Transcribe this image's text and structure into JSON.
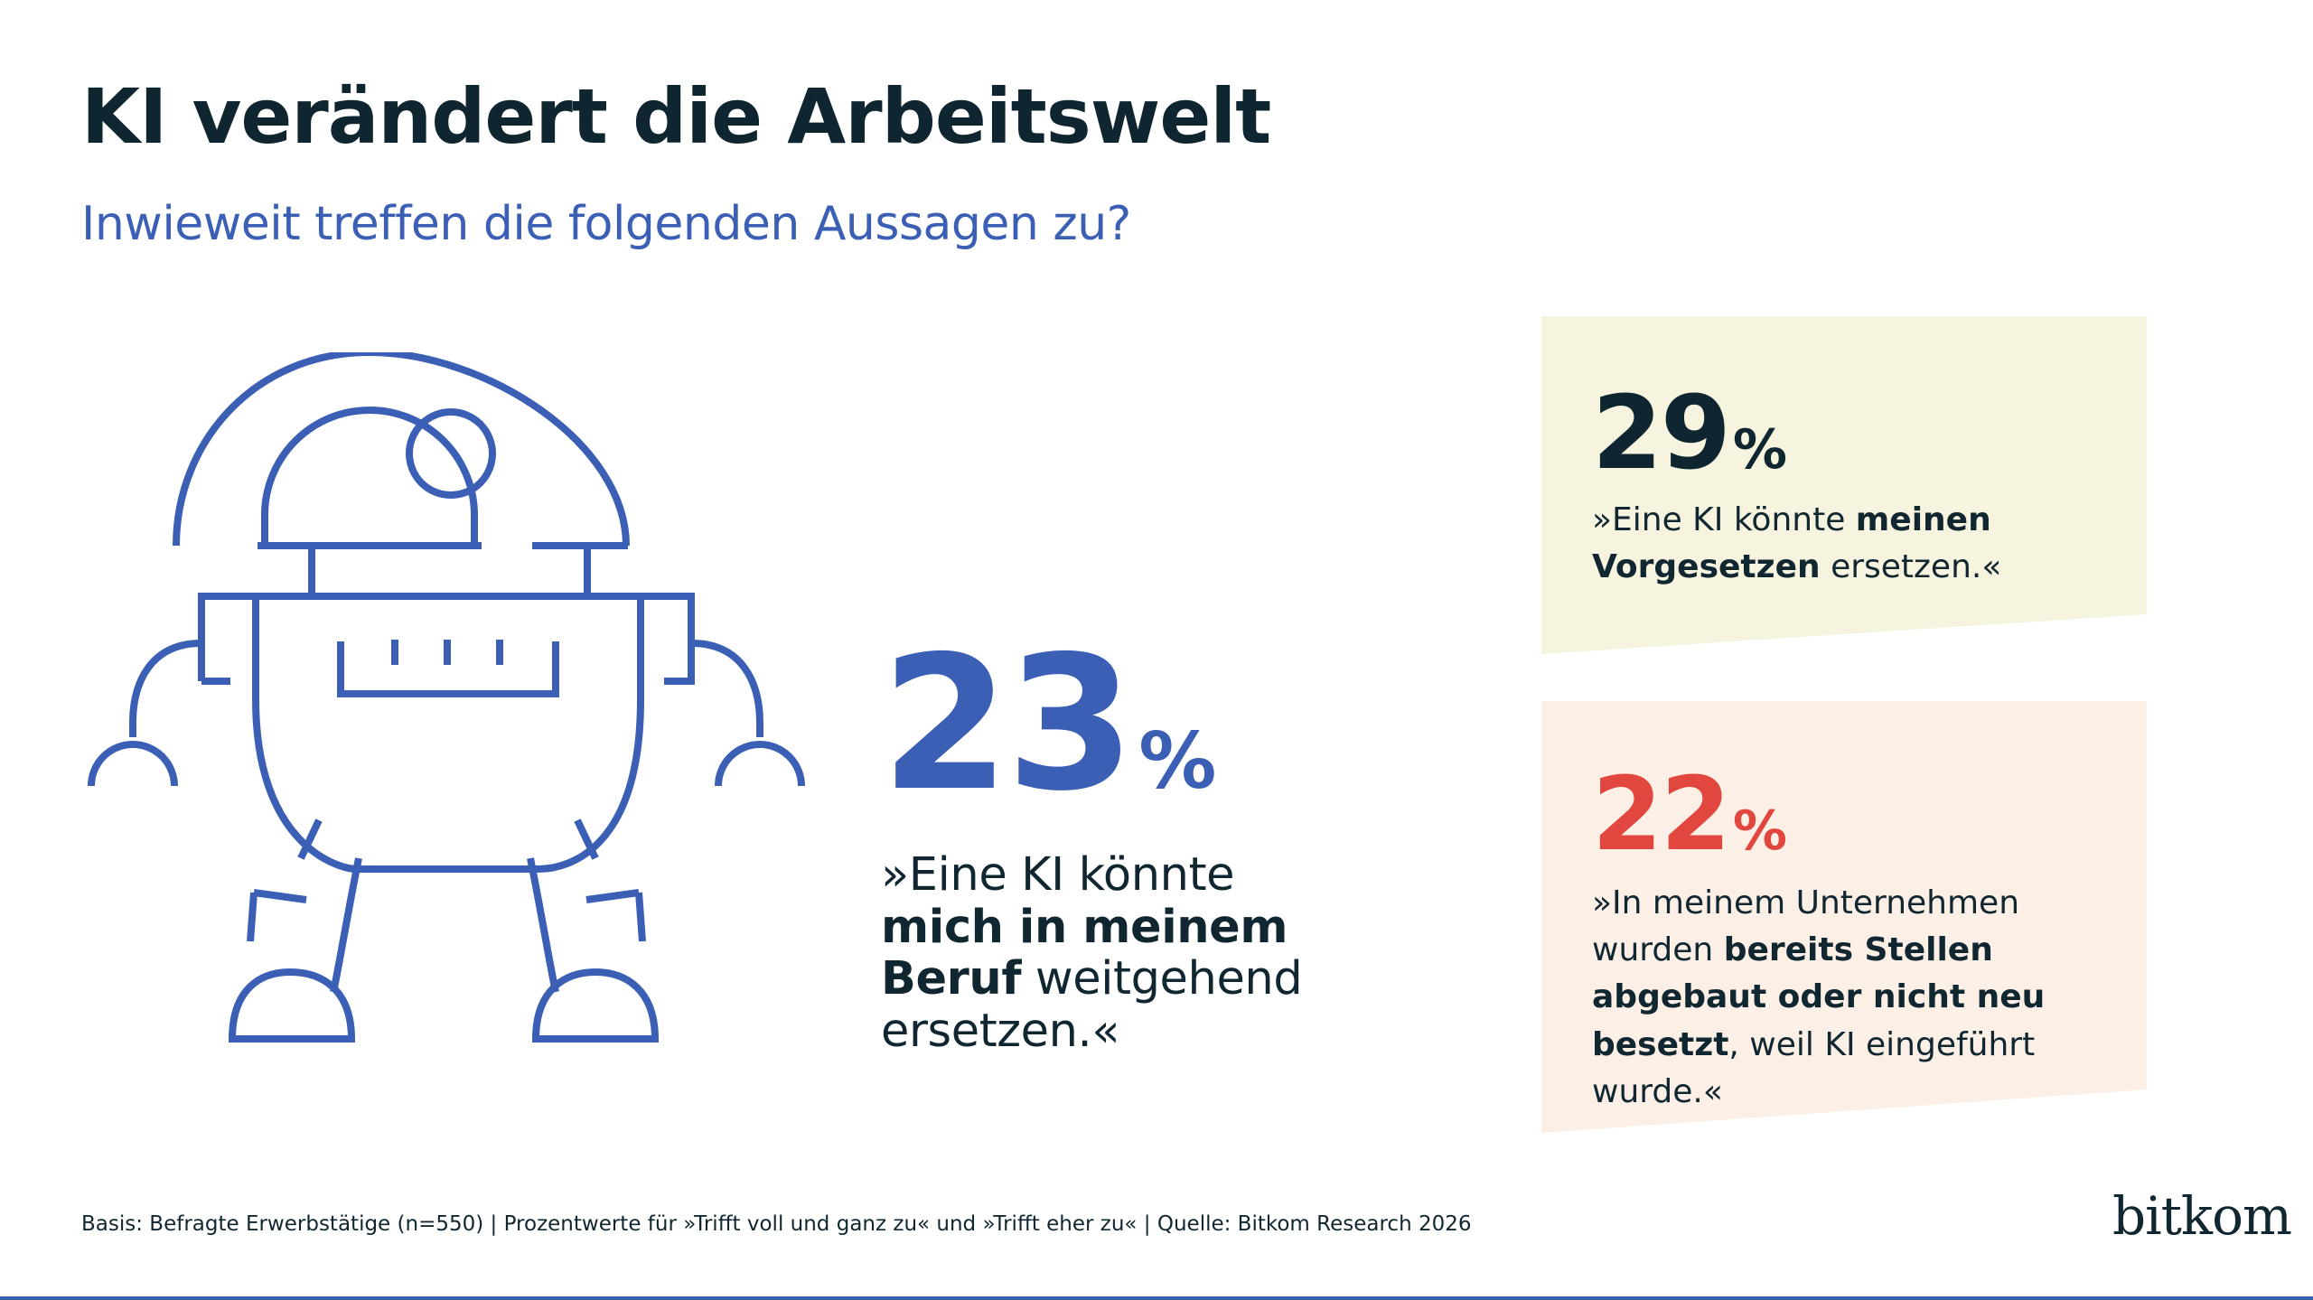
{
  "title": "KI verändert die Arbeitswelt",
  "subtitle": "Inwieweit treffen die folgenden Aussagen zu?",
  "main": {
    "value": "23",
    "unit": "%",
    "quote_pre": "»Eine KI könnte ",
    "quote_bold": "mich in meinem Beruf",
    "quote_post": " weitgehend ersetzen.«"
  },
  "cards": [
    {
      "value": "29",
      "unit": "%",
      "quote_pre": "»Eine KI könnte ",
      "quote_bold": "meinen Vorgesetzen",
      "quote_post": " ersetzen.«",
      "bg_color": "#f6f3df",
      "value_color": "#0f2630"
    },
    {
      "value": "22",
      "unit": "%",
      "quote_pre": "»In meinem Unternehmen wurden ",
      "quote_bold": "bereits Stellen abgebaut oder nicht neu besetzt",
      "quote_post": ", weil KI eingeführt wurde.«",
      "bg_color": "#fcefe6",
      "value_color": "#e2473f"
    }
  ],
  "footnote": "Basis: Befragte Erwerbstätige (n=550) | Prozentwerte für »Trifft voll und ganz zu« und »Trifft eher zu« | Quelle: Bitkom Research 2026",
  "logo": "bitkom",
  "colors": {
    "accent_blue": "#3a5fb4",
    "dark_text": "#102630",
    "red": "#e2473f"
  },
  "icons": {
    "illustration": "robot-icon"
  }
}
